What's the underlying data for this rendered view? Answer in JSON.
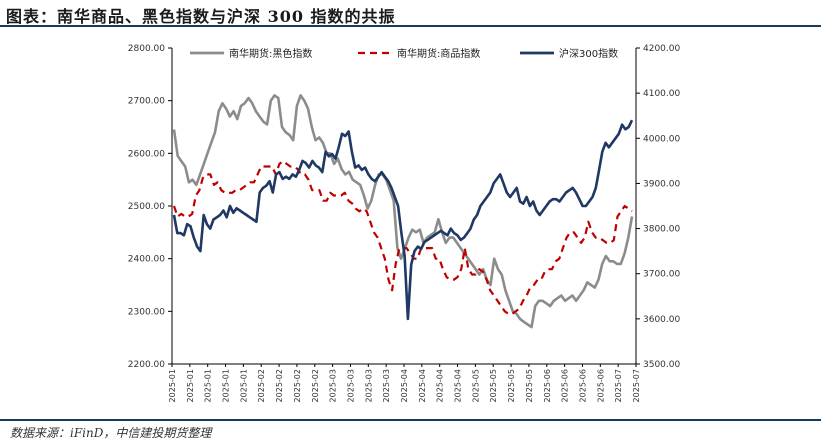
{
  "title": "图表：南华商品、黑色指数与沪深 300 指数的共振",
  "source": "数据来源：iFinD，中信建投期货整理",
  "colors": {
    "rule": "#1c3a5c",
    "black_index": "#8c8c8c",
    "commodity_index": "#c00000",
    "hs300": "#1f3864"
  },
  "chart_data": {
    "type": "line",
    "title": "",
    "xlabel": "",
    "ylabel": "",
    "grid": false,
    "legend_position": "top",
    "x_tick_labels": [
      "2025-01",
      "2025-01",
      "2025-01",
      "2025-01",
      "2025-01",
      "2025-02",
      "2025-02",
      "2025-02",
      "2025-02",
      "2025-03",
      "2025-03",
      "2025-03",
      "2025-03",
      "2025-04",
      "2025-04",
      "2025-04",
      "2025-04",
      "2025-05",
      "2025-05",
      "2025-05",
      "2025-05",
      "2025-06",
      "2025-06",
      "2025-06",
      "2025-06",
      "2025-07",
      "2025-07"
    ],
    "y_left": {
      "min": 2200,
      "max": 2800,
      "ticks": [
        "2200.00",
        "2300.00",
        "2400.00",
        "2500.00",
        "2600.00",
        "2700.00",
        "2800.00"
      ]
    },
    "y_right": {
      "min": 3500,
      "max": 4200,
      "ticks": [
        "3500.00",
        "3600.00",
        "3700.00",
        "3800.00",
        "3900.00",
        "4000.00",
        "4100.00",
        "4200.00"
      ]
    },
    "series": [
      {
        "name": "南华期货:黑色指数",
        "axis": "left",
        "style": "solid",
        "color": "#8c8c8c",
        "values": [
          2645,
          2595,
          2585,
          2575,
          2545,
          2550,
          2540,
          2560,
          2580,
          2600,
          2620,
          2640,
          2680,
          2695,
          2685,
          2670,
          2680,
          2665,
          2690,
          2695,
          2705,
          2695,
          2680,
          2670,
          2660,
          2655,
          2700,
          2710,
          2705,
          2650,
          2640,
          2635,
          2625,
          2690,
          2710,
          2700,
          2685,
          2650,
          2625,
          2630,
          2620,
          2600,
          2600,
          2580,
          2590,
          2570,
          2560,
          2565,
          2550,
          2545,
          2540,
          2520,
          2495,
          2510,
          2540,
          2560,
          2560,
          2550,
          2530,
          2510,
          2420,
          2400,
          2420,
          2440,
          2455,
          2450,
          2455,
          2430,
          2440,
          2445,
          2450,
          2475,
          2450,
          2430,
          2440,
          2440,
          2430,
          2420,
          2410,
          2400,
          2390,
          2380,
          2370,
          2380,
          2360,
          2350,
          2400,
          2380,
          2370,
          2340,
          2320,
          2300,
          2295,
          2285,
          2280,
          2275,
          2270,
          2310,
          2320,
          2320,
          2315,
          2310,
          2320,
          2325,
          2330,
          2320,
          2325,
          2330,
          2320,
          2330,
          2340,
          2355,
          2350,
          2345,
          2360,
          2390,
          2405,
          2395,
          2395,
          2390,
          2390,
          2410,
          2440,
          2480
        ]
      },
      {
        "name": "南华期货:商品指数",
        "axis": "left",
        "style": "dashed",
        "color": "#c00000",
        "values": [
          2500,
          2480,
          2485,
          2480,
          2480,
          2485,
          2520,
          2530,
          2555,
          2560,
          2560,
          2540,
          2545,
          2530,
          2525,
          2525,
          2525,
          2530,
          2530,
          2535,
          2540,
          2545,
          2545,
          2560,
          2575,
          2575,
          2575,
          2575,
          2560,
          2580,
          2585,
          2580,
          2575,
          2575,
          2570,
          2560,
          2560,
          2550,
          2530,
          2530,
          2530,
          2510,
          2510,
          2525,
          2520,
          2520,
          2520,
          2525,
          2510,
          2505,
          2495,
          2490,
          2495,
          2490,
          2470,
          2450,
          2440,
          2420,
          2400,
          2360,
          2340,
          2390,
          2420,
          2420,
          2420,
          2410,
          2400,
          2400,
          2420,
          2420,
          2420,
          2420,
          2400,
          2400,
          2380,
          2365,
          2360,
          2360,
          2365,
          2380,
          2420,
          2380,
          2370,
          2370,
          2380,
          2375,
          2360,
          2340,
          2330,
          2320,
          2310,
          2300,
          2295,
          2295,
          2300,
          2305,
          2320,
          2330,
          2345,
          2350,
          2360,
          2360,
          2375,
          2380,
          2380,
          2395,
          2400,
          2420,
          2440,
          2450,
          2450,
          2440,
          2430,
          2440,
          2470,
          2450,
          2440,
          2440,
          2435,
          2430,
          2430,
          2435,
          2480,
          2490,
          2500,
          2495,
          2490
        ]
      },
      {
        "name": "沪深300指数",
        "axis": "right",
        "style": "solid",
        "color": "#1f3864",
        "values": [
          3830,
          3790,
          3790,
          3785,
          3810,
          3805,
          3780,
          3760,
          3750,
          3830,
          3810,
          3800,
          3820,
          3825,
          3830,
          3840,
          3825,
          3850,
          3835,
          3845,
          3840,
          3835,
          3830,
          3825,
          3820,
          3815,
          3880,
          3890,
          3895,
          3905,
          3880,
          3920,
          3925,
          3910,
          3915,
          3910,
          3920,
          3915,
          3930,
          3950,
          3945,
          3935,
          3950,
          3940,
          3935,
          3925,
          3970,
          3960,
          3965,
          3955,
          3980,
          4010,
          4005,
          4015,
          3970,
          3935,
          3940,
          3930,
          3935,
          3920,
          3910,
          3905,
          3915,
          3925,
          3915,
          3905,
          3890,
          3870,
          3850,
          3790,
          3740,
          3600,
          3720,
          3750,
          3760,
          3755,
          3770,
          3775,
          3780,
          3785,
          3790,
          3795,
          3790,
          3785,
          3800,
          3790,
          3785,
          3775,
          3780,
          3790,
          3800,
          3820,
          3830,
          3850,
          3860,
          3870,
          3880,
          3900,
          3910,
          3920,
          3900,
          3880,
          3870,
          3880,
          3890,
          3860,
          3855,
          3870,
          3850,
          3860,
          3840,
          3830,
          3840,
          3850,
          3860,
          3865,
          3865,
          3860,
          3870,
          3880,
          3885,
          3890,
          3880,
          3865,
          3850,
          3850,
          3860,
          3870,
          3890,
          3930,
          3970,
          3990,
          3980,
          3990,
          4000,
          4010,
          4030,
          4020,
          4025,
          4040
        ]
      }
    ]
  }
}
